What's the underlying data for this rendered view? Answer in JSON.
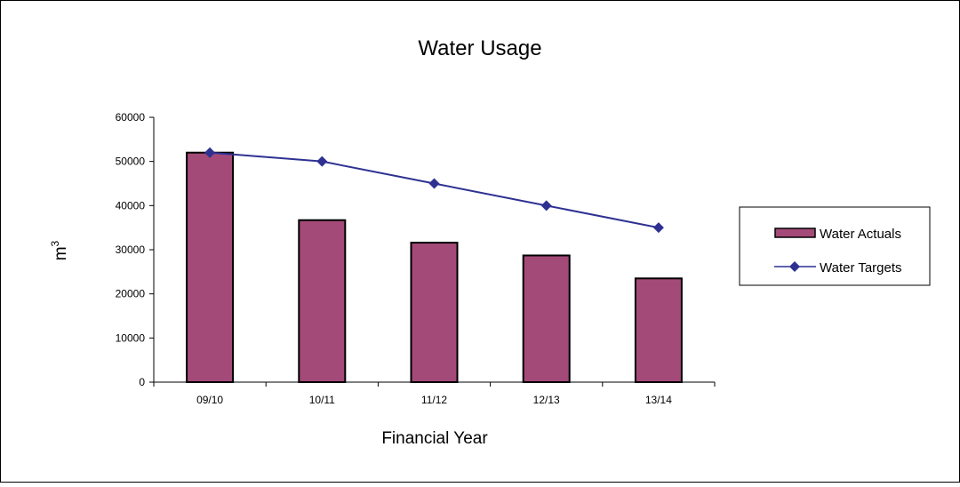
{
  "chart_data": {
    "type": "bar",
    "title": "Water Usage",
    "xlabel": "Financial Year",
    "ylabel": "m",
    "ylabel_superscript": "3",
    "categories": [
      "09/10",
      "10/11",
      "11/12",
      "12/13",
      "13/14"
    ],
    "ylim": [
      0,
      60000
    ],
    "yticks": [
      0,
      10000,
      20000,
      30000,
      40000,
      50000,
      60000
    ],
    "grid": false,
    "legend_position": "right",
    "series": [
      {
        "name": "Water Actuals",
        "type": "bar",
        "color": "#A44A78",
        "values": [
          52000,
          36700,
          31600,
          28700,
          23500
        ]
      },
      {
        "name": "Water Targets",
        "type": "line",
        "marker": "diamond",
        "color": "#2E3192",
        "values": [
          52000,
          50000,
          45000,
          40000,
          35000
        ]
      }
    ]
  }
}
